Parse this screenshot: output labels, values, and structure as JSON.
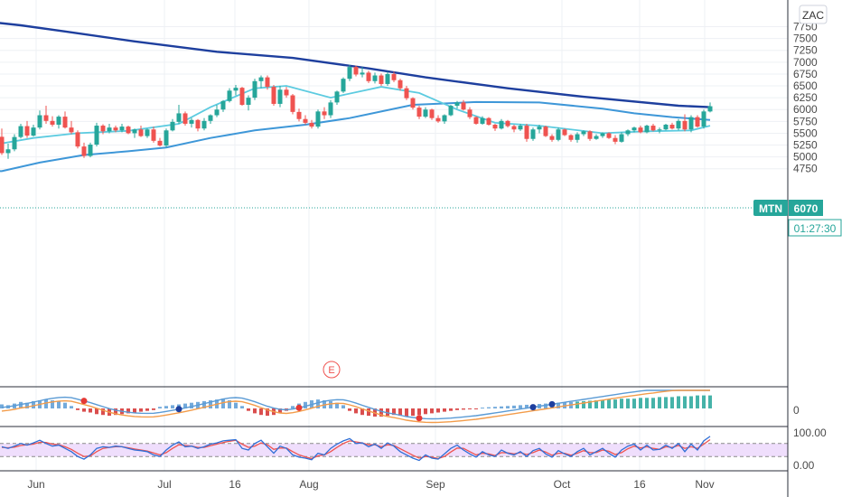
{
  "chart_data": {
    "type": "candlestick",
    "symbol_tag": "MTN",
    "last_price": "6070",
    "countdown": "01:27:30",
    "currency_button": "ZAC",
    "event_marker": "E",
    "price_ticks": [
      "7750",
      "7500",
      "7250",
      "7000",
      "6750",
      "6500",
      "6250",
      "6000",
      "5750",
      "5500",
      "5250",
      "5000",
      "4750"
    ],
    "time_labels": [
      "Jun",
      "Jul",
      "16",
      "Aug",
      "Sep",
      "Oct",
      "16",
      "Nov"
    ],
    "macd_tick": "0",
    "rsi_ticks": [
      "100.00",
      "0.00"
    ],
    "colors": {
      "up": "#26a69a",
      "down": "#ef5350",
      "ma_slow": "#1e3f9e",
      "ma_mid": "#3e97d8",
      "ma_fast": "#5ccbe0",
      "rsi_band": "#e9d3fb",
      "tag": "#26a69a"
    },
    "candles": [
      [
        5425,
        5600,
        5040,
        5080
      ],
      [
        5080,
        5280,
        4960,
        5160
      ],
      [
        5160,
        5480,
        5120,
        5420
      ],
      [
        5420,
        5700,
        5390,
        5650
      ],
      [
        5650,
        5760,
        5400,
        5450
      ],
      [
        5450,
        5680,
        5430,
        5620
      ],
      [
        5620,
        5980,
        5580,
        5880
      ],
      [
        5880,
        6080,
        5700,
        5760
      ],
      [
        5760,
        5860,
        5640,
        5680
      ],
      [
        5680,
        5880,
        5600,
        5850
      ],
      [
        5850,
        5960,
        5600,
        5620
      ],
      [
        5620,
        5760,
        5480,
        5520
      ],
      [
        5520,
        5560,
        5180,
        5220
      ],
      [
        5220,
        5300,
        4980,
        5020
      ],
      [
        5020,
        5300,
        4990,
        5260
      ],
      [
        5260,
        5720,
        5220,
        5660
      ],
      [
        5660,
        5690,
        5480,
        5540
      ],
      [
        5540,
        5700,
        5500,
        5620
      ],
      [
        5620,
        5660,
        5520,
        5560
      ],
      [
        5560,
        5700,
        5520,
        5640
      ],
      [
        5640,
        5660,
        5480,
        5500
      ],
      [
        5500,
        5600,
        5400,
        5580
      ],
      [
        5580,
        5660,
        5420,
        5440
      ],
      [
        5440,
        5600,
        5400,
        5580
      ],
      [
        5580,
        5640,
        5300,
        5340
      ],
      [
        5340,
        5400,
        5220,
        5240
      ],
      [
        5240,
        5600,
        5200,
        5560
      ],
      [
        5560,
        5800,
        5540,
        5740
      ],
      [
        5740,
        6100,
        5700,
        5920
      ],
      [
        5920,
        5960,
        5660,
        5700
      ],
      [
        5700,
        5820,
        5620,
        5780
      ],
      [
        5780,
        5800,
        5540,
        5600
      ],
      [
        5600,
        5820,
        5560,
        5760
      ],
      [
        5760,
        5900,
        5700,
        5880
      ],
      [
        5880,
        6100,
        5840,
        6000
      ],
      [
        6000,
        6200,
        5950,
        6180
      ],
      [
        6180,
        6450,
        6150,
        6400
      ],
      [
        6400,
        6520,
        6300,
        6460
      ],
      [
        6460,
        6480,
        6080,
        6100
      ],
      [
        6100,
        6300,
        5980,
        6250
      ],
      [
        6250,
        6650,
        6200,
        6600
      ],
      [
        6600,
        6720,
        6450,
        6680
      ],
      [
        6680,
        6720,
        6420,
        6480
      ],
      [
        6480,
        6520,
        6080,
        6120
      ],
      [
        6120,
        6500,
        6050,
        6420
      ],
      [
        6420,
        6480,
        6250,
        6300
      ],
      [
        6300,
        6330,
        5900,
        5950
      ],
      [
        5950,
        6020,
        5750,
        5800
      ],
      [
        5800,
        5880,
        5680,
        5720
      ],
      [
        5720,
        5780,
        5600,
        5640
      ],
      [
        5640,
        6000,
        5600,
        5960
      ],
      [
        5960,
        6050,
        5800,
        5880
      ],
      [
        5880,
        6200,
        5820,
        6150
      ],
      [
        6150,
        6400,
        6100,
        6380
      ],
      [
        6380,
        6680,
        6350,
        6650
      ],
      [
        6650,
        6950,
        6600,
        6900
      ],
      [
        6900,
        6930,
        6700,
        6740
      ],
      [
        6740,
        6900,
        6680,
        6780
      ],
      [
        6780,
        6820,
        6560,
        6600
      ],
      [
        6600,
        6780,
        6550,
        6720
      ],
      [
        6720,
        6760,
        6500,
        6540
      ],
      [
        6540,
        6800,
        6500,
        6750
      ],
      [
        6750,
        6800,
        6580,
        6620
      ],
      [
        6620,
        6650,
        6400,
        6450
      ],
      [
        6450,
        6500,
        6200,
        6240
      ],
      [
        6240,
        6260,
        6000,
        6040
      ],
      [
        6040,
        6080,
        5800,
        5850
      ],
      [
        5850,
        6050,
        5820,
        6000
      ],
      [
        6000,
        6020,
        5780,
        5820
      ],
      [
        5820,
        5880,
        5720,
        5750
      ],
      [
        5750,
        5900,
        5700,
        5880
      ],
      [
        5880,
        6100,
        5860,
        6080
      ],
      [
        6080,
        6180,
        6020,
        6150
      ],
      [
        6150,
        6200,
        5980,
        6000
      ],
      [
        6000,
        6050,
        5800,
        5840
      ],
      [
        5840,
        5860,
        5680,
        5700
      ],
      [
        5700,
        5860,
        5680,
        5820
      ],
      [
        5820,
        5840,
        5660,
        5680
      ],
      [
        5680,
        5700,
        5550,
        5600
      ],
      [
        5600,
        5800,
        5580,
        5760
      ],
      [
        5760,
        5780,
        5620,
        5650
      ],
      [
        5650,
        5680,
        5520,
        5580
      ],
      [
        5580,
        5700,
        5550,
        5660
      ],
      [
        5660,
        5700,
        5320,
        5380
      ],
      [
        5380,
        5620,
        5340,
        5580
      ],
      [
        5580,
        5680,
        5500,
        5640
      ],
      [
        5640,
        5660,
        5420,
        5440
      ],
      [
        5440,
        5480,
        5320,
        5360
      ],
      [
        5360,
        5620,
        5330,
        5580
      ],
      [
        5580,
        5600,
        5440,
        5460
      ],
      [
        5460,
        5480,
        5320,
        5360
      ],
      [
        5360,
        5520,
        5300,
        5480
      ],
      [
        5480,
        5560,
        5440,
        5540
      ],
      [
        5540,
        5560,
        5340,
        5380
      ],
      [
        5380,
        5480,
        5360,
        5440
      ],
      [
        5440,
        5520,
        5400,
        5500
      ],
      [
        5500,
        5520,
        5380,
        5400
      ],
      [
        5400,
        5460,
        5270,
        5320
      ],
      [
        5320,
        5520,
        5300,
        5480
      ],
      [
        5480,
        5580,
        5440,
        5560
      ],
      [
        5560,
        5640,
        5520,
        5620
      ],
      [
        5620,
        5660,
        5500,
        5520
      ],
      [
        5520,
        5680,
        5500,
        5660
      ],
      [
        5660,
        5700,
        5540,
        5560
      ],
      [
        5560,
        5620,
        5500,
        5580
      ],
      [
        5580,
        5700,
        5560,
        5680
      ],
      [
        5680,
        5720,
        5580,
        5600
      ],
      [
        5600,
        5800,
        5560,
        5760
      ],
      [
        5760,
        5900,
        5540,
        5580
      ],
      [
        5580,
        5880,
        5520,
        5840
      ],
      [
        5840,
        5880,
        5620,
        5640
      ],
      [
        5640,
        6000,
        5600,
        5960
      ],
      [
        5960,
        6150,
        5940,
        6070
      ]
    ],
    "ma_slow_points": [
      [
        -8,
        7940
      ],
      [
        3,
        7780
      ],
      [
        10,
        7650
      ],
      [
        21,
        7440
      ],
      [
        34,
        7220
      ],
      [
        46,
        7090
      ],
      [
        58,
        6870
      ],
      [
        67,
        6680
      ],
      [
        80,
        6450
      ],
      [
        92,
        6270
      ],
      [
        107,
        6080
      ],
      [
        112,
        6050
      ]
    ],
    "ma_mid_points": [
      [
        -8,
        4700
      ],
      [
        0,
        4700
      ],
      [
        6,
        4880
      ],
      [
        13,
        5040
      ],
      [
        20,
        5120
      ],
      [
        26,
        5200
      ],
      [
        33,
        5400
      ],
      [
        40,
        5560
      ],
      [
        48,
        5680
      ],
      [
        55,
        5820
      ],
      [
        65,
        6100
      ],
      [
        75,
        6160
      ],
      [
        85,
        6150
      ],
      [
        95,
        6020
      ],
      [
        100,
        5920
      ],
      [
        106,
        5840
      ],
      [
        112,
        5780
      ]
    ],
    "ma_fast_points": [
      [
        -8,
        5100
      ],
      [
        5,
        5400
      ],
      [
        12,
        5500
      ],
      [
        20,
        5550
      ],
      [
        28,
        5700
      ],
      [
        33,
        6050
      ],
      [
        40,
        6450
      ],
      [
        45,
        6500
      ],
      [
        52,
        6250
      ],
      [
        60,
        6480
      ],
      [
        66,
        6350
      ],
      [
        72,
        6000
      ],
      [
        78,
        5720
      ],
      [
        85,
        5660
      ],
      [
        95,
        5500
      ],
      [
        102,
        5540
      ],
      [
        109,
        5560
      ],
      [
        112,
        5660
      ]
    ],
    "macd_hist": [
      0.5,
      0.4,
      0.6,
      0.8,
      0.7,
      0.9,
      1.0,
      1.1,
      1.0,
      0.9,
      0.7,
      0.3,
      -0.2,
      -0.4,
      -0.5,
      -0.7,
      -0.8,
      -0.9,
      -0.8,
      -0.7,
      -0.6,
      -0.5,
      -0.4,
      -0.3,
      -0.2,
      0.2,
      0.3,
      0.4,
      0.5,
      0.6,
      0.7,
      0.8,
      0.9,
      1.0,
      1.1,
      1.2,
      1.0,
      0.7,
      0.3,
      -0.3,
      -0.6,
      -0.8,
      -0.9,
      -0.8,
      -0.6,
      -0.3,
      0.3,
      0.6,
      0.8,
      1.0,
      1.1,
      1.0,
      0.9,
      0.7,
      0.4,
      -0.3,
      -0.6,
      -0.8,
      -0.9,
      -1.0,
      -1.0,
      -0.9,
      -0.8,
      -0.9,
      -1.0,
      -0.9,
      -0.8,
      -0.7,
      -0.6,
      -0.5,
      -0.4,
      -0.3,
      -0.2,
      -0.15,
      -0.1,
      -0.1,
      0.1,
      0.15,
      0.2,
      0.25,
      0.3,
      0.35,
      0.4,
      0.45,
      0.5,
      0.55,
      0.6,
      0.65,
      0.7,
      0.75,
      0.8,
      0.85,
      0.9,
      0.95,
      1.0,
      1.0,
      1.1,
      1.1,
      1.2,
      1.2,
      1.2,
      1.3,
      1.3,
      1.3,
      1.4,
      1.4,
      1.4,
      1.5,
      1.5,
      1.5,
      1.6,
      1.6,
      1.6
    ],
    "rsi_fast": [
      60,
      55,
      62,
      70,
      65,
      72,
      80,
      70,
      62,
      65,
      55,
      45,
      30,
      22,
      35,
      55,
      60,
      58,
      62,
      60,
      55,
      50,
      48,
      45,
      35,
      30,
      50,
      65,
      75,
      60,
      62,
      55,
      60,
      68,
      72,
      78,
      80,
      82,
      55,
      50,
      70,
      80,
      60,
      40,
      62,
      55,
      35,
      28,
      25,
      20,
      40,
      35,
      55,
      68,
      78,
      85,
      70,
      72,
      60,
      68,
      55,
      72,
      62,
      45,
      35,
      25,
      18,
      35,
      25,
      22,
      38,
      55,
      65,
      50,
      38,
      28,
      45,
      35,
      30,
      50,
      40,
      35,
      45,
      30,
      48,
      55,
      38,
      28,
      48,
      38,
      30,
      45,
      55,
      35,
      45,
      55,
      40,
      28,
      50,
      62,
      68,
      50,
      65,
      50,
      52,
      65,
      55,
      70,
      45,
      68,
      50,
      78,
      92
    ],
    "rsi_slow": [
      58,
      57,
      59,
      64,
      66,
      68,
      74,
      73,
      68,
      66,
      60,
      52,
      40,
      30,
      32,
      45,
      55,
      58,
      60,
      60,
      57,
      53,
      50,
      47,
      41,
      35,
      42,
      55,
      66,
      64,
      62,
      58,
      58,
      63,
      68,
      73,
      77,
      80,
      68,
      58,
      62,
      72,
      66,
      52,
      56,
      56,
      45,
      35,
      29,
      24,
      32,
      35,
      45,
      58,
      70,
      78,
      75,
      72,
      66,
      66,
      60,
      66,
      64,
      54,
      44,
      34,
      25,
      30,
      28,
      24,
      30,
      44,
      56,
      55,
      45,
      35,
      40,
      38,
      33,
      42,
      41,
      38,
      42,
      36,
      42,
      50,
      44,
      34,
      40,
      40,
      34,
      40,
      48,
      42,
      42,
      50,
      46,
      36,
      42,
      54,
      62,
      56,
      60,
      55,
      52,
      60,
      58,
      64,
      55,
      60,
      55,
      68,
      82
    ],
    "rsi_dots_red": [
      13,
      47,
      66
    ],
    "rsi_dots_blue": [
      28,
      84,
      87
    ]
  }
}
